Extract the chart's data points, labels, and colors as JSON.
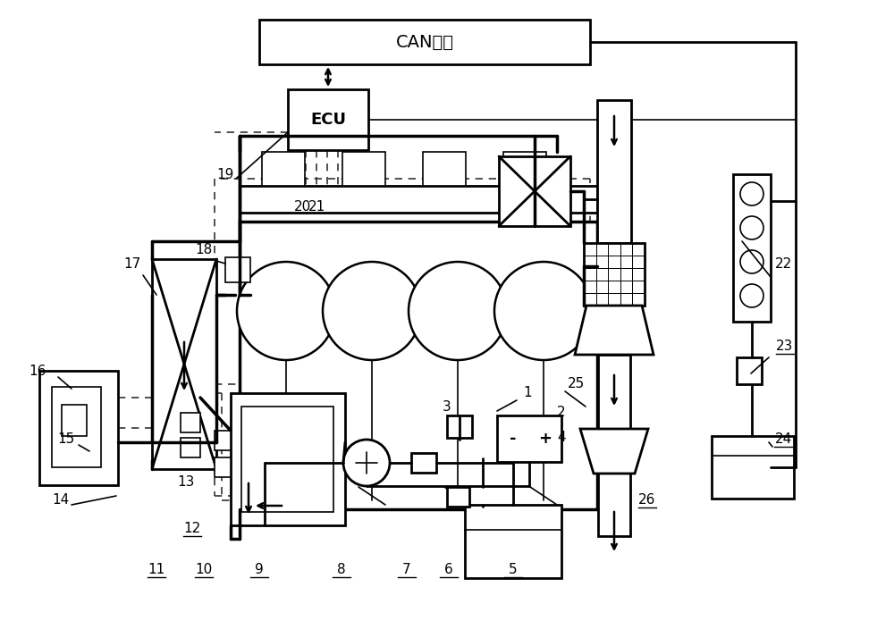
{
  "bg_color": "#ffffff",
  "lc": "#000000",
  "can_label": "CAN总线",
  "ecu_label": "ECU",
  "fig_w": 10.0,
  "fig_h": 7.04,
  "dpi": 100
}
